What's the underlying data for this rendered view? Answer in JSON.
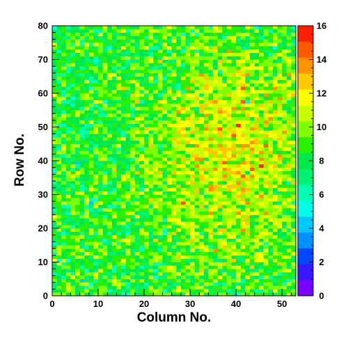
{
  "chart_data": {
    "type": "heatmap",
    "title": "",
    "xlabel": "Column No.",
    "ylabel": "Row No.",
    "xlim": [
      0,
      53
    ],
    "ylim": [
      0,
      80
    ],
    "x_ticks": [
      0,
      10,
      20,
      30,
      40,
      50
    ],
    "y_ticks": [
      0,
      10,
      20,
      30,
      40,
      50,
      60,
      70,
      80
    ],
    "colorbar": {
      "range": [
        0,
        16
      ],
      "ticks": [
        0,
        2,
        4,
        6,
        8,
        10,
        12,
        14,
        16
      ],
      "palette": [
        "#7a00ff",
        "#3a18ff",
        "#0046ff",
        "#0090ff",
        "#00c8ff",
        "#00ffe8",
        "#00ffb0",
        "#00f070",
        "#00e84a",
        "#28f000",
        "#80ff00",
        "#c8ff00",
        "#ffff00",
        "#ffc800",
        "#ff9400",
        "#ff5a00",
        "#ff2000"
      ]
    },
    "grid": false,
    "bins": {
      "columns": 53,
      "rows": 80
    },
    "distribution_note_values": {
      "low_region_mean": 8.5,
      "hot_region_mean": 11.5,
      "hot_region_x": [
        28,
        50
      ],
      "hot_region_y": [
        25,
        60
      ],
      "typical_min": 2,
      "typical_max": 16
    }
  }
}
